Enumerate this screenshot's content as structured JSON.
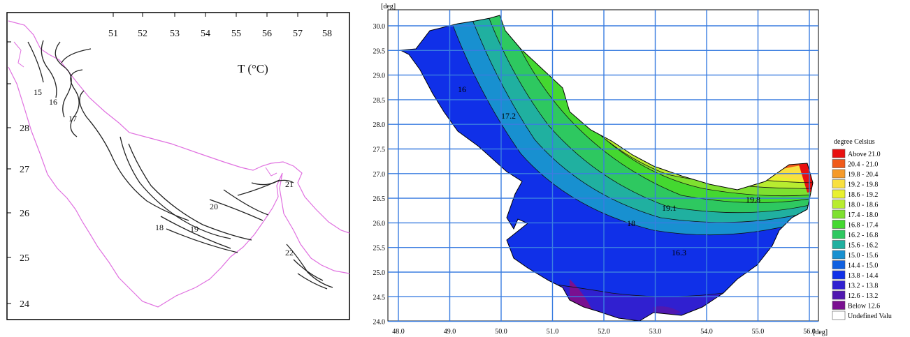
{
  "left_map": {
    "title": "T (°C)",
    "lon_ticks": [
      "51",
      "52",
      "53",
      "54",
      "55",
      "56",
      "57",
      "58"
    ],
    "lat_ticks": [
      "28",
      "27",
      "26",
      "25",
      "24"
    ],
    "contour_labels": [
      "15",
      "16",
      "17",
      "18",
      "19",
      "20",
      "21",
      "22"
    ]
  },
  "right_map": {
    "axis_unit": "[deg]",
    "x_ticks": [
      "48.0",
      "49.0",
      "50.0",
      "51.0",
      "52.0",
      "53.0",
      "54.0",
      "55.0",
      "56.0"
    ],
    "y_ticks": [
      "30.0",
      "29.5",
      "29.0",
      "28.5",
      "28.0",
      "27.5",
      "27.0",
      "26.5",
      "26.0",
      "25.5",
      "25.0",
      "24.5",
      "24.0"
    ],
    "contour_labels": [
      "16",
      "17.2",
      "19.1",
      "19.8",
      "18",
      "16.3"
    ],
    "legend": {
      "title": "degree Celsius",
      "items": [
        {
          "label": "Above 21.0",
          "color": "#e81010"
        },
        {
          "label": "20.4 - 21.0",
          "color": "#f05a1a"
        },
        {
          "label": "19.8 - 20.4",
          "color": "#f59a2a"
        },
        {
          "label": "19.2 - 19.8",
          "color": "#f8e040"
        },
        {
          "label": "18.6 - 19.2",
          "color": "#e8f030"
        },
        {
          "label": "18.0 - 18.6",
          "color": "#b8ec30"
        },
        {
          "label": "17.4 - 18.0",
          "color": "#7ee030"
        },
        {
          "label": "16.8 - 17.4",
          "color": "#44d830"
        },
        {
          "label": "16.2 - 16.8",
          "color": "#2ec860"
        },
        {
          "label": "15.6 - 16.2",
          "color": "#20b0a0"
        },
        {
          "label": "15.0 - 15.6",
          "color": "#1890d0"
        },
        {
          "label": "14.4 - 15.0",
          "color": "#1060e0"
        },
        {
          "label": "13.8 - 14.4",
          "color": "#1030e8"
        },
        {
          "label": "13.2 - 13.8",
          "color": "#3020d0"
        },
        {
          "label": "12.6 - 13.2",
          "color": "#5018b0"
        },
        {
          "label": "Below 12.6",
          "color": "#7a1090"
        },
        {
          "label": "Undefined Valu",
          "color": "#ffffff"
        }
      ]
    }
  }
}
